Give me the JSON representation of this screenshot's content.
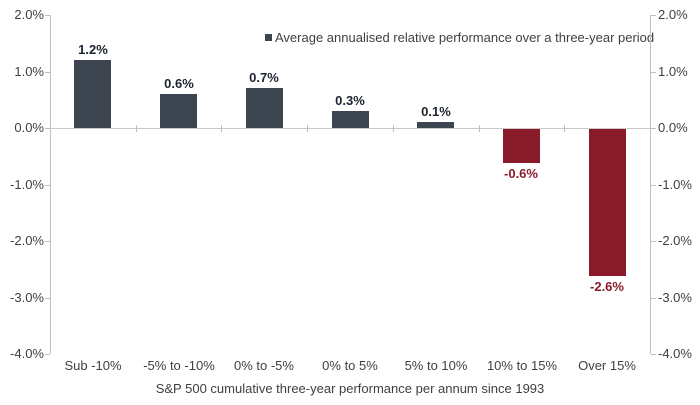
{
  "chart_data": {
    "type": "bar",
    "title": "",
    "legend": "Average annualised relative performance over a three-year period",
    "legend_position": "top-right-inside",
    "xlabel": "S&P 500 cumulative three-year performance per annum since 1993",
    "ylabel": "",
    "categories": [
      "Sub -10%",
      "-5% to -10%",
      "0% to -5%",
      "0% to 5%",
      "5% to 10%",
      "10% to 15%",
      "Over 15%"
    ],
    "values": [
      1.2,
      0.6,
      0.7,
      0.3,
      0.1,
      -0.6,
      -2.6
    ],
    "value_labels": [
      "1.2%",
      "0.6%",
      "0.7%",
      "0.3%",
      "0.1%",
      "-0.6%",
      "-2.6%"
    ],
    "ylim": [
      -4,
      2
    ],
    "y_ticks": [
      {
        "value": 2,
        "label": "2.0%"
      },
      {
        "value": 1,
        "label": "1.0%"
      },
      {
        "value": 0,
        "label": "0.0%"
      },
      {
        "value": -1,
        "label": "-1.0%"
      },
      {
        "value": -2,
        "label": "-2.0%"
      },
      {
        "value": -3,
        "label": "-3.0%"
      },
      {
        "value": -4,
        "label": "-4.0%"
      }
    ],
    "dual_y_axis": true,
    "grid": false,
    "colors": {
      "bar_positive": "#3d4551",
      "bar_negative": "#8a1b2b",
      "label_positive": "#1a232e",
      "label_negative": "#8a1b2b",
      "axis_line": "#bfbfbf",
      "axis_text": "#404040",
      "background": "#ffffff"
    }
  }
}
